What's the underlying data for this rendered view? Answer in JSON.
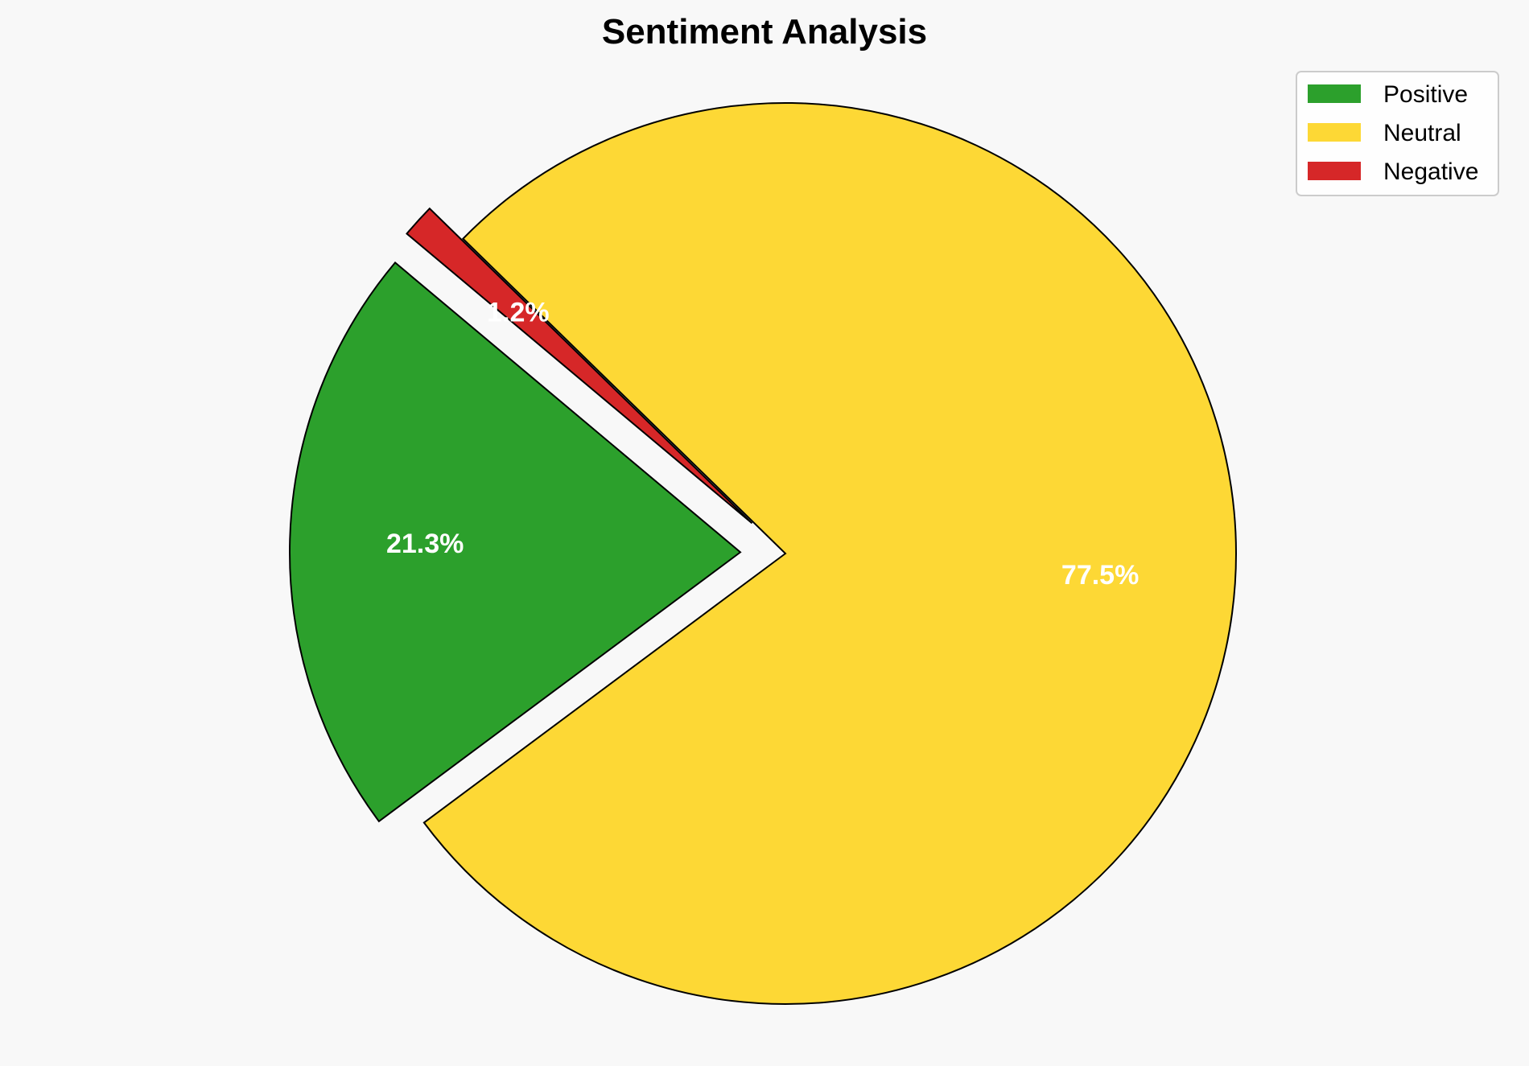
{
  "chart_data": {
    "type": "pie",
    "title": "Sentiment Analysis",
    "categories": [
      "Positive",
      "Neutral",
      "Negative"
    ],
    "values": [
      21.3,
      77.5,
      1.2
    ],
    "labels": [
      "21.3%",
      "77.5%",
      "1.2%"
    ],
    "colors": [
      "#2ca02c",
      "#fdd835",
      "#d62728"
    ],
    "exploded": [
      true,
      false,
      true
    ],
    "legend": {
      "placement": "top-right",
      "entries": [
        "Positive",
        "Neutral",
        "Negative"
      ]
    }
  }
}
